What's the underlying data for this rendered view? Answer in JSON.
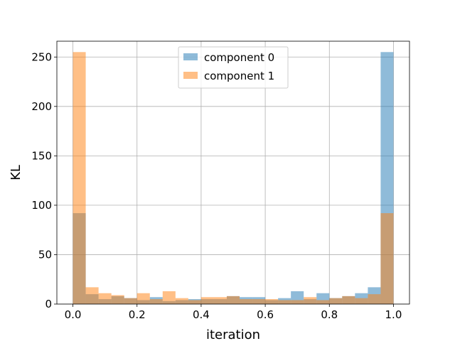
{
  "chart_data": {
    "type": "bar",
    "title": "",
    "xlabel": "iteration",
    "ylabel": "KL",
    "xlim": [
      -0.05,
      1.05
    ],
    "ylim": [
      0,
      266
    ],
    "xticks": [
      0.0,
      0.2,
      0.4,
      0.6,
      0.8,
      1.0
    ],
    "xtick_labels": [
      "0.0",
      "0.2",
      "0.4",
      "0.6",
      "0.8",
      "1.0"
    ],
    "yticks": [
      0,
      50,
      100,
      150,
      200,
      250
    ],
    "ytick_labels": [
      "0",
      "50",
      "100",
      "150",
      "200",
      "250"
    ],
    "grid": true,
    "legend_position": "top-center",
    "bin_edges": [
      0.0,
      0.04,
      0.08,
      0.12,
      0.16,
      0.2,
      0.24,
      0.28,
      0.32,
      0.36,
      0.4,
      0.44,
      0.48,
      0.52,
      0.56,
      0.6,
      0.64,
      0.68,
      0.72,
      0.76,
      0.8,
      0.84,
      0.88,
      0.92,
      0.96,
      1.0
    ],
    "series": [
      {
        "name": "component 0",
        "color": "#1f77b4",
        "alpha": 0.5,
        "values": [
          92,
          10,
          5,
          8,
          6,
          4,
          7,
          3,
          4,
          5,
          5,
          5,
          8,
          7,
          7,
          4,
          6,
          13,
          5,
          11,
          6,
          8,
          11,
          17,
          255
        ]
      },
      {
        "name": "component 1",
        "color": "#ff7f0e",
        "alpha": 0.5,
        "values": [
          255,
          17,
          11,
          9,
          6,
          11,
          5,
          13,
          6,
          4,
          7,
          7,
          8,
          5,
          5,
          5,
          4,
          4,
          7,
          4,
          6,
          8,
          6,
          10,
          92
        ]
      }
    ]
  }
}
